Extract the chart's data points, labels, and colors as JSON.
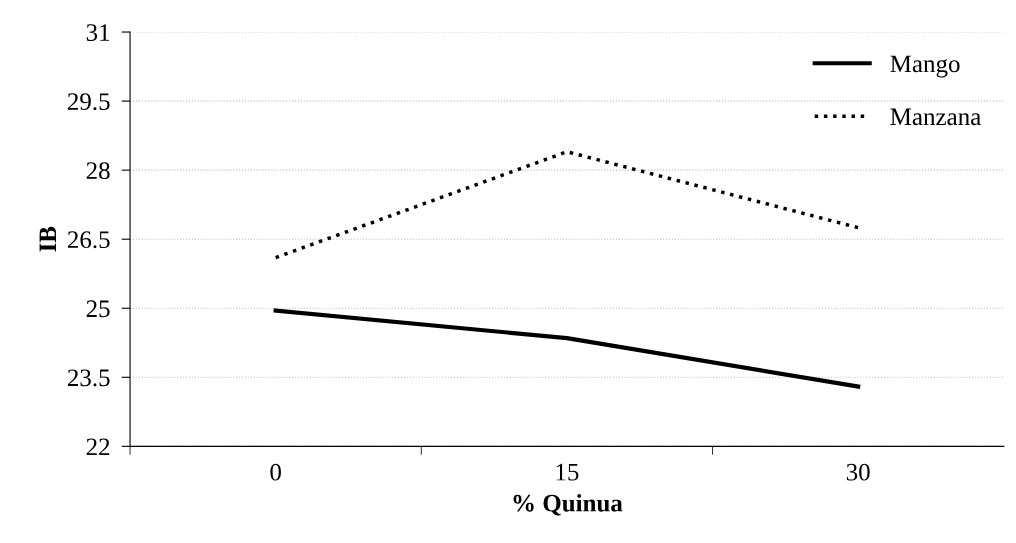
{
  "chart_data": {
    "type": "line",
    "xlabel": "% Quinua",
    "ylabel": "IB",
    "categories": [
      "0",
      "15",
      "30"
    ],
    "series": [
      {
        "name": "Mango",
        "color": "#000000",
        "line_style": "solid",
        "values": [
          24.95,
          24.35,
          23.3
        ]
      },
      {
        "name": "Manzana",
        "color": "#000000",
        "line_style": "dotted",
        "values": [
          26.1,
          28.4,
          26.75
        ]
      }
    ],
    "ylim": [
      22,
      31
    ],
    "yticks": [
      22,
      23.5,
      25,
      26.5,
      28,
      29.5,
      31
    ],
    "grid": "y",
    "legend": "top right",
    "marker": "none"
  }
}
